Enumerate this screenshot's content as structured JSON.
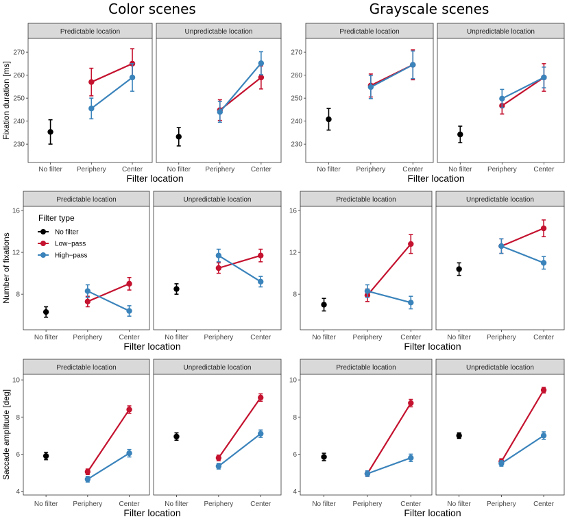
{
  "titles": {
    "color": "Color scenes",
    "gray": "Grayscale scenes"
  },
  "facets": [
    "Predictable location",
    "Unpredictable location"
  ],
  "x_categories": [
    "No filter",
    "Periphery",
    "Center"
  ],
  "xlabel": "Filter location",
  "legend": {
    "title": "Filter type",
    "items": [
      {
        "name": "No filter",
        "color": "#000000"
      },
      {
        "name": "Low−pass",
        "color": "#c4122f"
      },
      {
        "name": "High−pass",
        "color": "#3a83bb"
      }
    ]
  },
  "chart_data": [
    {
      "type": "line",
      "scene": "Color scenes",
      "row": "Fixation duration",
      "ylabel": "Fixation duration [ms]",
      "ylim": [
        222,
        276
      ],
      "yticks": [
        "230",
        "240",
        "250",
        "260",
        "270"
      ],
      "ytick_values": [
        230,
        240,
        250,
        260,
        270
      ],
      "panels": [
        {
          "facet": "Predictable location",
          "no_filter": {
            "value": 235.3,
            "err": 5.3
          },
          "series": [
            {
              "name": "Low−pass",
              "values": [
                257,
                265
              ],
              "errors": [
                6,
                6.5
              ]
            },
            {
              "name": "High−pass",
              "values": [
                245.5,
                259
              ],
              "errors": [
                4.5,
                6
              ]
            }
          ]
        },
        {
          "facet": "Unpredictable location",
          "no_filter": {
            "value": 233.2,
            "err": 4
          },
          "series": [
            {
              "name": "Low−pass",
              "values": [
                244.8,
                259
              ],
              "errors": [
                4.5,
                5
              ]
            },
            {
              "name": "High−pass",
              "values": [
                244,
                265.2
              ],
              "errors": [
                4.5,
                5
              ]
            }
          ]
        }
      ]
    },
    {
      "type": "line",
      "scene": "Grayscale scenes",
      "row": "Fixation duration",
      "ylabel": "",
      "ylim": [
        222,
        276
      ],
      "yticks": [
        "230",
        "240",
        "250",
        "260",
        "270"
      ],
      "ytick_values": [
        230,
        240,
        250,
        260,
        270
      ],
      "panels": [
        {
          "facet": "Predictable location",
          "no_filter": {
            "value": 240.8,
            "err": 4.7
          },
          "series": [
            {
              "name": "Low−pass",
              "values": [
                255.5,
                264.5
              ],
              "errors": [
                5,
                6.5
              ]
            },
            {
              "name": "High−pass",
              "values": [
                254.8,
                264.5
              ],
              "errors": [
                5,
                6
              ]
            }
          ]
        },
        {
          "facet": "Unpredictable location",
          "no_filter": {
            "value": 234.2,
            "err": 3.6
          },
          "series": [
            {
              "name": "Low−pass",
              "values": [
                246.7,
                259
              ],
              "errors": [
                3.6,
                6
              ]
            },
            {
              "name": "High−pass",
              "values": [
                249.8,
                259
              ],
              "errors": [
                4,
                4.5
              ]
            }
          ]
        }
      ]
    },
    {
      "type": "line",
      "scene": "Color scenes",
      "row": "Number of fixations",
      "ylabel": "Number of fixations",
      "ylim": [
        4.6,
        16.4
      ],
      "yticks": [
        "8",
        "12",
        "16"
      ],
      "ytick_values": [
        8,
        12,
        16
      ],
      "panels": [
        {
          "facet": "Predictable location",
          "no_filter": {
            "value": 6.3,
            "err": 0.5
          },
          "series": [
            {
              "name": "Low−pass",
              "values": [
                7.3,
                9.0
              ],
              "errors": [
                0.5,
                0.6
              ]
            },
            {
              "name": "High−pass",
              "values": [
                8.3,
                6.4
              ],
              "errors": [
                0.6,
                0.5
              ]
            }
          ]
        },
        {
          "facet": "Unpredictable location",
          "no_filter": {
            "value": 8.5,
            "err": 0.5
          },
          "series": [
            {
              "name": "Low−pass",
              "values": [
                10.5,
                11.7
              ],
              "errors": [
                0.5,
                0.6
              ]
            },
            {
              "name": "High−pass",
              "values": [
                11.7,
                9.2
              ],
              "errors": [
                0.6,
                0.5
              ]
            }
          ]
        }
      ]
    },
    {
      "type": "line",
      "scene": "Grayscale scenes",
      "row": "Number of fixations",
      "ylabel": "",
      "ylim": [
        4.6,
        16.4
      ],
      "yticks": [
        "8",
        "12",
        "16"
      ],
      "ytick_values": [
        8,
        12,
        16
      ],
      "panels": [
        {
          "facet": "Predictable location",
          "no_filter": {
            "value": 7.0,
            "err": 0.6
          },
          "series": [
            {
              "name": "Low−pass",
              "values": [
                7.9,
                12.8
              ],
              "errors": [
                0.6,
                0.9
              ]
            },
            {
              "name": "High−pass",
              "values": [
                8.3,
                7.2
              ],
              "errors": [
                0.6,
                0.6
              ]
            }
          ]
        },
        {
          "facet": "Unpredictable location",
          "no_filter": {
            "value": 10.4,
            "err": 0.6
          },
          "series": [
            {
              "name": "Low−pass",
              "values": [
                12.6,
                14.3
              ],
              "errors": [
                0.7,
                0.8
              ]
            },
            {
              "name": "High−pass",
              "values": [
                12.6,
                11.0
              ],
              "errors": [
                0.7,
                0.6
              ]
            }
          ]
        }
      ]
    },
    {
      "type": "line",
      "scene": "Color scenes",
      "row": "Saccade amplitude",
      "ylabel": "Saccade amplitude [deg]",
      "ylim": [
        3.8,
        10.3
      ],
      "yticks": [
        "4",
        "6",
        "8",
        "10"
      ],
      "ytick_values": [
        4,
        6,
        8,
        10
      ],
      "panels": [
        {
          "facet": "Predictable location",
          "no_filter": {
            "value": 5.9,
            "err": 0.2
          },
          "series": [
            {
              "name": "Low−pass",
              "values": [
                5.05,
                8.4
              ],
              "errors": [
                0.15,
                0.2
              ]
            },
            {
              "name": "High−pass",
              "values": [
                4.65,
                6.05
              ],
              "errors": [
                0.15,
                0.2
              ]
            }
          ]
        },
        {
          "facet": "Unpredictable location",
          "no_filter": {
            "value": 6.95,
            "err": 0.2
          },
          "series": [
            {
              "name": "Low−pass",
              "values": [
                5.8,
                9.05
              ],
              "errors": [
                0.15,
                0.2
              ]
            },
            {
              "name": "High−pass",
              "values": [
                5.35,
                7.1
              ],
              "errors": [
                0.15,
                0.2
              ]
            }
          ]
        }
      ]
    },
    {
      "type": "line",
      "scene": "Grayscale scenes",
      "row": "Saccade amplitude",
      "ylabel": "",
      "ylim": [
        3.8,
        10.3
      ],
      "yticks": [
        "4",
        "6",
        "8",
        "10"
      ],
      "ytick_values": [
        4,
        6,
        8,
        10
      ],
      "panels": [
        {
          "facet": "Predictable location",
          "no_filter": {
            "value": 5.85,
            "err": 0.2
          },
          "series": [
            {
              "name": "Low−pass",
              "values": [
                4.95,
                8.75
              ],
              "errors": [
                0.15,
                0.2
              ]
            },
            {
              "name": "High−pass",
              "values": [
                4.95,
                5.8
              ],
              "errors": [
                0.15,
                0.2
              ]
            }
          ]
        },
        {
          "facet": "Unpredictable location",
          "no_filter": {
            "value": 7.0,
            "err": 0.15
          },
          "series": [
            {
              "name": "Low−pass",
              "values": [
                5.6,
                9.45
              ],
              "errors": [
                0.15,
                0.15
              ]
            },
            {
              "name": "High−pass",
              "values": [
                5.5,
                7.0
              ],
              "errors": [
                0.15,
                0.2
              ]
            }
          ]
        }
      ]
    }
  ]
}
